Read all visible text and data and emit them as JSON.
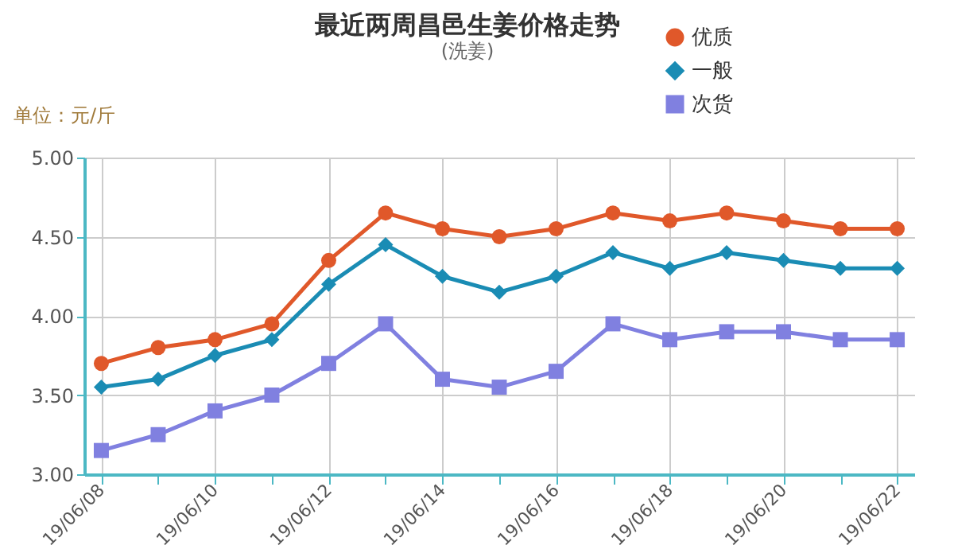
{
  "chart_data": {
    "type": "line",
    "title": "最近两周昌邑生姜价格走势",
    "subtitle": "(洗姜)",
    "ylabel": "单位：元/斤",
    "categories": [
      "19/06/08",
      null,
      "19/06/10",
      null,
      "19/06/12",
      null,
      "19/06/14",
      null,
      "19/06/16",
      null,
      "19/06/18",
      null,
      "19/06/20",
      null,
      "19/06/22"
    ],
    "series": [
      {
        "name": "优质",
        "color": "#e0582a",
        "marker": "circle",
        "values": [
          3.7,
          3.8,
          3.85,
          3.95,
          4.35,
          4.65,
          4.55,
          4.5,
          4.55,
          4.65,
          4.6,
          4.65,
          4.6,
          4.55,
          4.55
        ]
      },
      {
        "name": "一般",
        "color": "#1a8cb4",
        "marker": "diamond",
        "values": [
          3.55,
          3.6,
          3.75,
          3.85,
          4.2,
          4.45,
          4.25,
          4.15,
          4.25,
          4.4,
          4.3,
          4.4,
          4.35,
          4.3,
          4.3
        ]
      },
      {
        "name": "次货",
        "color": "#8080e0",
        "marker": "square",
        "values": [
          3.15,
          3.25,
          3.4,
          3.5,
          3.7,
          3.95,
          3.6,
          3.55,
          3.65,
          3.95,
          3.85,
          3.9,
          3.9,
          3.85,
          3.85
        ]
      }
    ],
    "ylim": [
      3.0,
      5.0
    ],
    "yticks": [
      {
        "value": 3.0,
        "label": "3.00"
      },
      {
        "value": 3.5,
        "label": "3.50"
      },
      {
        "value": 4.0,
        "label": "4.00"
      },
      {
        "value": 4.5,
        "label": "4.50"
      },
      {
        "value": 5.0,
        "label": "5.00"
      }
    ],
    "grid": true,
    "legend": "top right",
    "line_style": "solid"
  }
}
